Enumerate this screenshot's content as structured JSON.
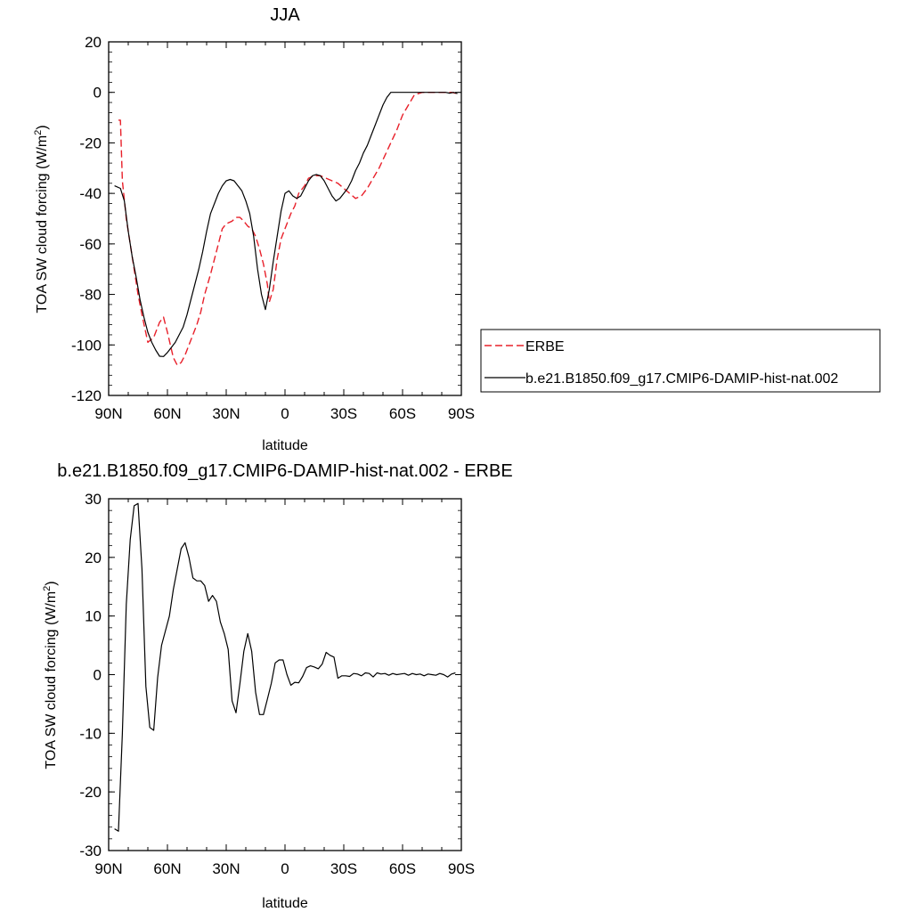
{
  "colors": {
    "erbe": "#e8202a",
    "model": "#000000",
    "axes": "#000000"
  },
  "chart_data": [
    {
      "type": "line",
      "title": "JJA",
      "xlabel": "latitude",
      "ylabel": "TOA SW cloud forcing (W/m",
      "ylabel_sup": "2",
      "ylabel_end": ")",
      "xlim": [
        90,
        -90
      ],
      "ylim": [
        -120,
        20
      ],
      "xticks": [
        {
          "v": 90,
          "label": "90N"
        },
        {
          "v": 60,
          "label": "60N"
        },
        {
          "v": 30,
          "label": "30N"
        },
        {
          "v": 0,
          "label": "0"
        },
        {
          "v": -30,
          "label": "30S"
        },
        {
          "v": -60,
          "label": "60S"
        },
        {
          "v": -90,
          "label": "90S"
        }
      ],
      "yticks": [
        {
          "v": 20,
          "label": "20"
        },
        {
          "v": 0,
          "label": "0"
        },
        {
          "v": -20,
          "label": "-20"
        },
        {
          "v": -40,
          "label": "-40"
        },
        {
          "v": -60,
          "label": "-60"
        },
        {
          "v": -80,
          "label": "-80"
        },
        {
          "v": -100,
          "label": "-100"
        },
        {
          "v": -120,
          "label": "-120"
        }
      ],
      "legend": "right",
      "series": [
        {
          "name": "ERBE",
          "style": "dashed",
          "x": [
            85,
            84,
            83,
            81,
            79,
            77,
            75,
            73,
            70,
            67,
            64,
            62,
            60,
            57,
            55,
            53,
            51,
            49,
            47,
            45,
            43,
            41,
            38,
            36,
            34,
            32,
            30,
            27,
            25,
            23,
            21,
            19,
            17,
            15,
            13,
            11,
            9,
            8,
            6,
            4,
            2,
            0,
            -3,
            -5,
            -7,
            -10,
            -12,
            -15,
            -18,
            -21,
            -24,
            -27,
            -30,
            -33,
            -36,
            -39,
            -42,
            -45,
            -48,
            -51,
            -54,
            -57,
            -60,
            -63,
            -66,
            -70,
            -73,
            -76,
            -80,
            -85,
            -88
          ],
          "y": [
            -11,
            -11,
            -35,
            -50,
            -60,
            -70,
            -80,
            -88,
            -99,
            -97,
            -91,
            -89,
            -95,
            -105,
            -108,
            -107,
            -104,
            -100,
            -96,
            -92,
            -87,
            -80,
            -72,
            -66,
            -60,
            -54,
            -52,
            -51,
            -49.5,
            -49.5,
            -51,
            -53,
            -54,
            -57,
            -62,
            -68,
            -76,
            -83,
            -78,
            -66,
            -58,
            -54,
            -48,
            -45,
            -40,
            -37,
            -34,
            -33,
            -33,
            -34,
            -35,
            -36,
            -38,
            -40,
            -42,
            -41,
            -38,
            -34,
            -30,
            -25,
            -20,
            -15,
            -9,
            -5,
            -1,
            0,
            0,
            0,
            0,
            0,
            -0.5
          ]
        },
        {
          "name": "b.e21.B1850.f09_g17.CMIP6-DAMIP-hist-nat.002",
          "style": "solid",
          "x": [
            87,
            84,
            82,
            80,
            78,
            76,
            74,
            72,
            70,
            68,
            66,
            64,
            62,
            60,
            58,
            56,
            54,
            52,
            50,
            48,
            46,
            44,
            42,
            40,
            38,
            36,
            34,
            32,
            30,
            28,
            26,
            24,
            22,
            20,
            18,
            16,
            14,
            12,
            10,
            8,
            6,
            4,
            2,
            0,
            -2,
            -4,
            -6,
            -8,
            -10,
            -12,
            -14,
            -16,
            -18,
            -20,
            -22,
            -24,
            -26,
            -28,
            -30,
            -32,
            -34,
            -36,
            -38,
            -40,
            -42,
            -44,
            -46,
            -48,
            -50,
            -52,
            -54,
            -56,
            -58,
            -60,
            -62,
            -64,
            -66,
            -68,
            -70,
            -72,
            -74,
            -76,
            -78,
            -80,
            -82,
            -84,
            -86,
            -88
          ],
          "y": [
            -37,
            -38,
            -43,
            -55,
            -65,
            -73,
            -82,
            -89,
            -95,
            -99,
            -102,
            -104.5,
            -104.6,
            -103,
            -101,
            -99,
            -96,
            -93,
            -88,
            -82,
            -76,
            -70,
            -63,
            -55,
            -48,
            -44,
            -40,
            -37,
            -35,
            -34.5,
            -35,
            -37,
            -39,
            -43,
            -48,
            -57,
            -70,
            -80,
            -86,
            -78,
            -67,
            -57,
            -47,
            -40,
            -39,
            -41,
            -42,
            -41,
            -38,
            -35,
            -33,
            -32.5,
            -33,
            -35,
            -38,
            -41,
            -43,
            -42,
            -40,
            -38,
            -35,
            -31,
            -28,
            -24,
            -21,
            -17,
            -13,
            -9,
            -5,
            -2,
            0,
            0,
            0,
            0,
            0,
            0,
            0,
            0,
            0,
            0,
            0,
            0,
            0,
            0,
            0,
            -0.3,
            0,
            -0.5
          ]
        }
      ]
    },
    {
      "type": "line",
      "title": "b.e21.B1850.f09_g17.CMIP6-DAMIP-hist-nat.002 - ERBE",
      "xlabel": "latitude",
      "ylabel": "TOA SW cloud forcing (W/m",
      "ylabel_sup": "2",
      "ylabel_end": ")",
      "xlim": [
        90,
        -90
      ],
      "ylim": [
        -30,
        30
      ],
      "xticks": [
        {
          "v": 90,
          "label": "90N"
        },
        {
          "v": 60,
          "label": "60N"
        },
        {
          "v": 30,
          "label": "30N"
        },
        {
          "v": 0,
          "label": "0"
        },
        {
          "v": -30,
          "label": "30S"
        },
        {
          "v": -60,
          "label": "60S"
        },
        {
          "v": -90,
          "label": "90S"
        }
      ],
      "yticks": [
        {
          "v": 30,
          "label": "30"
        },
        {
          "v": 20,
          "label": "20"
        },
        {
          "v": 10,
          "label": "10"
        },
        {
          "v": 0,
          "label": "0"
        },
        {
          "v": -10,
          "label": "-10"
        },
        {
          "v": -20,
          "label": "-20"
        },
        {
          "v": -30,
          "label": "-30"
        }
      ],
      "series": [
        {
          "style": "solid",
          "x": [
            87,
            85,
            83,
            81,
            79,
            77,
            75,
            73,
            71,
            69,
            67,
            65,
            63,
            61,
            59,
            57,
            55,
            53,
            51,
            49,
            47,
            45,
            43,
            41,
            39,
            37,
            35,
            33,
            31,
            29,
            27,
            25,
            23,
            21,
            19,
            17,
            15,
            13,
            11,
            9,
            7,
            5,
            3,
            1,
            -1,
            -3,
            -5,
            -7,
            -9,
            -11,
            -13,
            -15,
            -17,
            -19,
            -21,
            -23,
            -25,
            -27,
            -29,
            -31,
            -33,
            -35,
            -37,
            -39,
            -41,
            -43,
            -45,
            -47,
            -49,
            -51,
            -53,
            -55,
            -57,
            -59,
            -61,
            -63,
            -65,
            -67,
            -69,
            -71,
            -73,
            -75,
            -77,
            -79,
            -81,
            -83,
            -85,
            -87
          ],
          "y": [
            -26.3,
            -26.7,
            -10,
            12,
            23,
            28.8,
            29.2,
            18,
            -2,
            -9,
            -9.5,
            -0.5,
            5,
            7.5,
            10,
            14.5,
            18,
            21.5,
            22.5,
            20,
            16.5,
            16,
            16,
            15.2,
            12.5,
            13.5,
            12.5,
            9,
            7,
            4.3,
            -4.5,
            -6.5,
            -1.5,
            4,
            7,
            4,
            -3,
            -6.8,
            -6.8,
            -4.2,
            -1.5,
            2,
            2.5,
            2.5,
            0,
            -1.8,
            -1.3,
            -1.4,
            -0.3,
            1.2,
            1.5,
            1.3,
            1,
            1.8,
            3.8,
            3.3,
            3,
            -0.6,
            -0.2,
            -0.2,
            -0.3,
            0.2,
            0.1,
            -0.2,
            0.3,
            0.2,
            -0.4,
            0.3,
            0.1,
            0.2,
            -0.1,
            0.2,
            0,
            0.1,
            0.2,
            -0.1,
            0.2,
            0,
            0.1,
            -0.2,
            0.1,
            0,
            -0.1,
            0.2,
            0,
            -0.4,
            0.1,
            0.3
          ]
        }
      ]
    }
  ]
}
